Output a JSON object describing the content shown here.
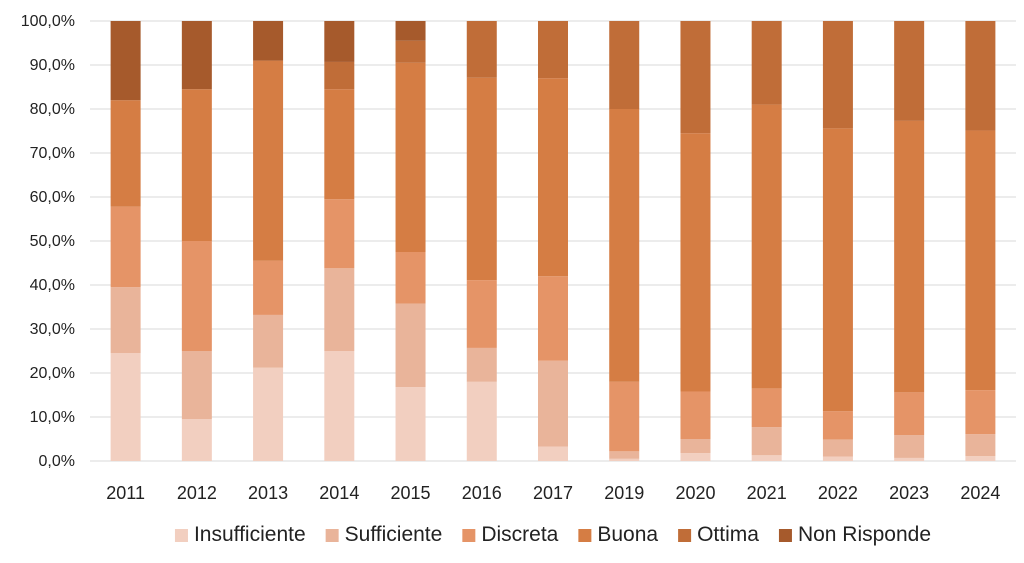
{
  "chart_data": {
    "type": "bar",
    "stacked": true,
    "percent": true,
    "categories": [
      "2011",
      "2012",
      "2013",
      "2014",
      "2015",
      "2016",
      "2017",
      "2019",
      "2020",
      "2021",
      "2022",
      "2023",
      "2024"
    ],
    "y_ticks": [
      "0,0%",
      "10,0%",
      "20,0%",
      "30,0%",
      "40,0%",
      "50,0%",
      "60,0%",
      "70,0%",
      "80,0%",
      "90,0%",
      "100,0%"
    ],
    "ylim": [
      0,
      100
    ],
    "grid": true,
    "legend_position": "bottom",
    "series": [
      {
        "name": "Insufficiente",
        "color": "#f2cfc0",
        "values": [
          24.5,
          9.5,
          21.2,
          25.0,
          16.8,
          18.0,
          3.3,
          0.5,
          1.8,
          1.3,
          1.0,
          0.7,
          1.1
        ]
      },
      {
        "name": "Sufficiente",
        "color": "#e9b49a",
        "values": [
          15.0,
          15.5,
          12.0,
          18.8,
          19.0,
          7.7,
          19.5,
          1.7,
          3.2,
          6.4,
          3.9,
          5.2,
          5.0
        ]
      },
      {
        "name": "Discreta",
        "color": "#e59467",
        "values": [
          18.3,
          25.0,
          12.3,
          15.7,
          11.7,
          15.4,
          19.2,
          15.8,
          10.8,
          8.8,
          6.4,
          9.7,
          10.0
        ]
      },
      {
        "name": "Buona",
        "color": "#d57d44",
        "values": [
          24.2,
          34.5,
          45.5,
          25.0,
          43.0,
          46.0,
          45.0,
          62.0,
          58.7,
          64.5,
          64.3,
          61.7,
          59.0
        ]
      },
      {
        "name": "Ottima",
        "color": "#c06d38",
        "values": [
          0.0,
          0.0,
          0.0,
          6.2,
          5.0,
          12.9,
          13.0,
          20.0,
          25.5,
          19.0,
          24.4,
          22.7,
          24.9
        ]
      },
      {
        "name": "Non Risponde",
        "color": "#a65a2c",
        "values": [
          18.0,
          15.5,
          9.0,
          9.3,
          4.5,
          0.0,
          0.0,
          0.0,
          0.0,
          0.0,
          0.0,
          0.0,
          0.0
        ]
      }
    ]
  }
}
